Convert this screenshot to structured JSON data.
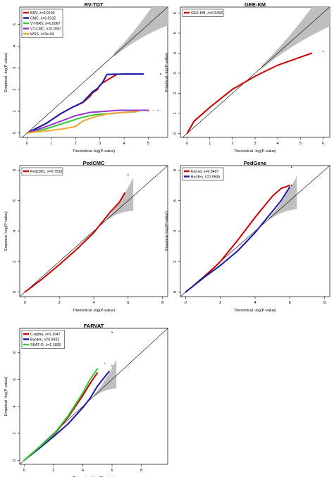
{
  "chart_data": [
    {
      "type": "scatter",
      "title": "RV-TDT",
      "xlabel": "Theoretical -log(P-value)",
      "ylabel": "Empirical -log(P-value)",
      "xlim": [
        -0.3,
        5.8
      ],
      "ylim": [
        -0.2,
        5.8
      ],
      "xticks": [
        "0",
        "1",
        "2",
        "3",
        "4",
        "5"
      ],
      "yticks": [
        "0",
        "1",
        "2",
        "3",
        "4",
        "5"
      ],
      "legend_position": "top-left",
      "series": [
        {
          "name": "BRV, λ=0.0139",
          "color": "#cc0000",
          "points": [
            [
              0,
              0
            ],
            [
              0.8,
              0.45
            ],
            [
              1.4,
              0.9
            ],
            [
              1.9,
              1.2
            ],
            [
              2.3,
              1.4
            ],
            [
              2.6,
              1.7
            ],
            [
              2.7,
              1.85
            ],
            [
              2.9,
              2.0
            ],
            [
              3.0,
              2.2
            ],
            [
              3.1,
              2.3
            ],
            [
              3.7,
              2.7
            ],
            [
              5.7,
              3.45
            ]
          ]
        },
        {
          "name": "CMC, λ=0.0132",
          "color": "#1a1aa6",
          "points": [
            [
              0,
              0
            ],
            [
              0.8,
              0.45
            ],
            [
              1.4,
              0.9
            ],
            [
              1.9,
              1.2
            ],
            [
              2.3,
              1.42
            ],
            [
              2.7,
              1.9
            ],
            [
              2.9,
              2.05
            ],
            [
              3.1,
              2.3
            ],
            [
              3.3,
              2.7
            ],
            [
              4.0,
              2.72
            ],
            [
              4.8,
              2.72
            ],
            [
              5.5,
              2.72
            ]
          ]
        },
        {
          "name": "VT-BRV, λ=0.0067",
          "color": "#33cc33",
          "points": [
            [
              0,
              0
            ],
            [
              0.8,
              0.2
            ],
            [
              1.5,
              0.45
            ],
            [
              2.2,
              0.7
            ],
            [
              2.8,
              0.85
            ],
            [
              3.5,
              0.9
            ],
            [
              4.0,
              0.95
            ],
            [
              4.5,
              0.98
            ],
            [
              5.0,
              1.0
            ]
          ]
        },
        {
          "name": "VT-CMC, λ=0.0067",
          "color": "#9933cc",
          "points": [
            [
              0,
              0
            ],
            [
              0.8,
              0.3
            ],
            [
              1.4,
              0.55
            ],
            [
              2.0,
              0.8
            ],
            [
              2.6,
              0.95
            ],
            [
              3.2,
              1.0
            ],
            [
              3.8,
              1.05
            ],
            [
              4.4,
              1.05
            ],
            [
              5.0,
              1.05
            ],
            [
              5.4,
              1.05
            ]
          ]
        },
        {
          "name": "WSS, λ=9e-04",
          "color": "#f2a630",
          "points": [
            [
              0,
              0
            ],
            [
              0.8,
              0.1
            ],
            [
              1.5,
              0.2
            ],
            [
              2.0,
              0.3
            ],
            [
              2.3,
              0.55
            ],
            [
              2.8,
              0.75
            ],
            [
              3.4,
              0.9
            ],
            [
              4.0,
              0.95
            ],
            [
              4.6,
              1.0
            ],
            [
              5.2,
              1.05
            ]
          ]
        }
      ]
    },
    {
      "type": "scatter",
      "title": "GEE-KM",
      "xlabel": "Theoretical -log(P-value)",
      "ylabel": "Empirical -log(P-value)",
      "xlim": [
        -0.3,
        6.3
      ],
      "ylim": [
        -0.2,
        6.3
      ],
      "xticks": [
        "0",
        "1",
        "2",
        "3",
        "4",
        "5",
        "6"
      ],
      "yticks": [
        "0",
        "1",
        "2",
        "3",
        "4",
        "5",
        "6"
      ],
      "legend_position": "top-left",
      "series": [
        {
          "name": "GEE-KM, λ=0.5493",
          "color": "#cc0000",
          "points": [
            [
              0,
              0
            ],
            [
              0.3,
              0.6
            ],
            [
              1.0,
              1.3
            ],
            [
              2.0,
              2.2
            ],
            [
              3.0,
              2.85
            ],
            [
              4.0,
              3.4
            ],
            [
              5.0,
              3.8
            ],
            [
              5.5,
              4.0
            ],
            [
              6.0,
              4.1
            ]
          ]
        }
      ]
    },
    {
      "type": "scatter",
      "title": "PedCMC",
      "xlabel": "Theoretical -log(P-value)",
      "ylabel": "Empirical -log(P-value)",
      "xlim": [
        -0.3,
        8.3
      ],
      "ylim": [
        -0.3,
        8.3
      ],
      "xticks": [
        "0",
        "2",
        "4",
        "6",
        "8"
      ],
      "yticks": [
        "0",
        "2",
        "4",
        "6",
        "8"
      ],
      "legend_position": "top-left",
      "series": [
        {
          "name": "PedCMC, λ=0.7533",
          "color": "#cc0000",
          "points": [
            [
              0,
              0
            ],
            [
              1,
              0.85
            ],
            [
              2,
              1.8
            ],
            [
              3,
              2.8
            ],
            [
              4,
              3.9
            ],
            [
              4.5,
              4.6
            ],
            [
              5,
              5.3
            ],
            [
              5.5,
              5.9
            ],
            [
              5.8,
              6.5
            ],
            [
              6.0,
              7.7
            ]
          ]
        }
      ]
    },
    {
      "type": "scatter",
      "title": "PedGene",
      "xlabel": "Theoretical -log(P-value)",
      "ylabel": "Empirical -log(P-value)",
      "xlim": [
        -0.3,
        8.3
      ],
      "ylim": [
        -0.3,
        8.3
      ],
      "xticks": [
        "0",
        "2",
        "4",
        "6",
        "8"
      ],
      "yticks": [
        "0",
        "2",
        "4",
        "6",
        "8"
      ],
      "legend_position": "top-left",
      "series": [
        {
          "name": "Kernel, λ=0.8407",
          "color": "#cc0000",
          "points": [
            [
              0,
              0
            ],
            [
              1,
              0.9
            ],
            [
              2,
              2.0
            ],
            [
              3,
              3.4
            ],
            [
              4,
              4.9
            ],
            [
              4.5,
              5.6
            ],
            [
              5,
              6.3
            ],
            [
              5.5,
              6.8
            ],
            [
              6.0,
              7.0
            ],
            [
              6.1,
              8.2
            ]
          ]
        },
        {
          "name": "Burden, λ=0.9945",
          "color": "#1a1aa6",
          "points": [
            [
              0,
              0
            ],
            [
              1,
              0.9
            ],
            [
              2,
              1.75
            ],
            [
              3,
              2.7
            ],
            [
              4,
              3.9
            ],
            [
              4.5,
              4.6
            ],
            [
              5,
              5.3
            ],
            [
              5.5,
              6.0
            ],
            [
              6.0,
              6.9
            ],
            [
              6.1,
              7.0
            ]
          ]
        }
      ]
    },
    {
      "type": "scatter",
      "title": "FARVAT",
      "xlabel": "Theoretical -log(P-value)",
      "ylabel": "Empirical -log(P-value)",
      "xlim": [
        -0.3,
        9.8
      ],
      "ylim": [
        -0.3,
        9.8
      ],
      "xticks": [
        "0",
        "2",
        "4",
        "6",
        "8"
      ],
      "yticks": [
        "0",
        "2",
        "4",
        "6",
        "8"
      ],
      "legend_position": "top-left",
      "series": [
        {
          "name": "C-alpha, λ=1.1047",
          "color": "#cc0000",
          "points": [
            [
              0,
              0
            ],
            [
              1,
              0.95
            ],
            [
              2,
              1.85
            ],
            [
              3,
              3.2
            ],
            [
              4,
              4.8
            ],
            [
              4.5,
              5.7
            ],
            [
              5,
              6.5
            ],
            [
              6.0,
              9.5
            ]
          ]
        },
        {
          "name": "Burden, λ=0.9932",
          "color": "#1a1aa6",
          "points": [
            [
              0,
              0
            ],
            [
              1,
              0.85
            ],
            [
              2,
              1.75
            ],
            [
              3,
              2.7
            ],
            [
              4,
              3.9
            ],
            [
              4.5,
              4.6
            ],
            [
              5,
              5.5
            ],
            [
              5.8,
              6.6
            ],
            [
              6.0,
              7.0
            ]
          ]
        },
        {
          "name": "SKAT-O, λ=1.1683",
          "color": "#33cc33",
          "points": [
            [
              0,
              0
            ],
            [
              1,
              0.95
            ],
            [
              2,
              1.9
            ],
            [
              3,
              3.3
            ],
            [
              4,
              5.0
            ],
            [
              4.5,
              6.0
            ],
            [
              5,
              6.8
            ],
            [
              5.5,
              7.2
            ]
          ]
        }
      ]
    }
  ]
}
